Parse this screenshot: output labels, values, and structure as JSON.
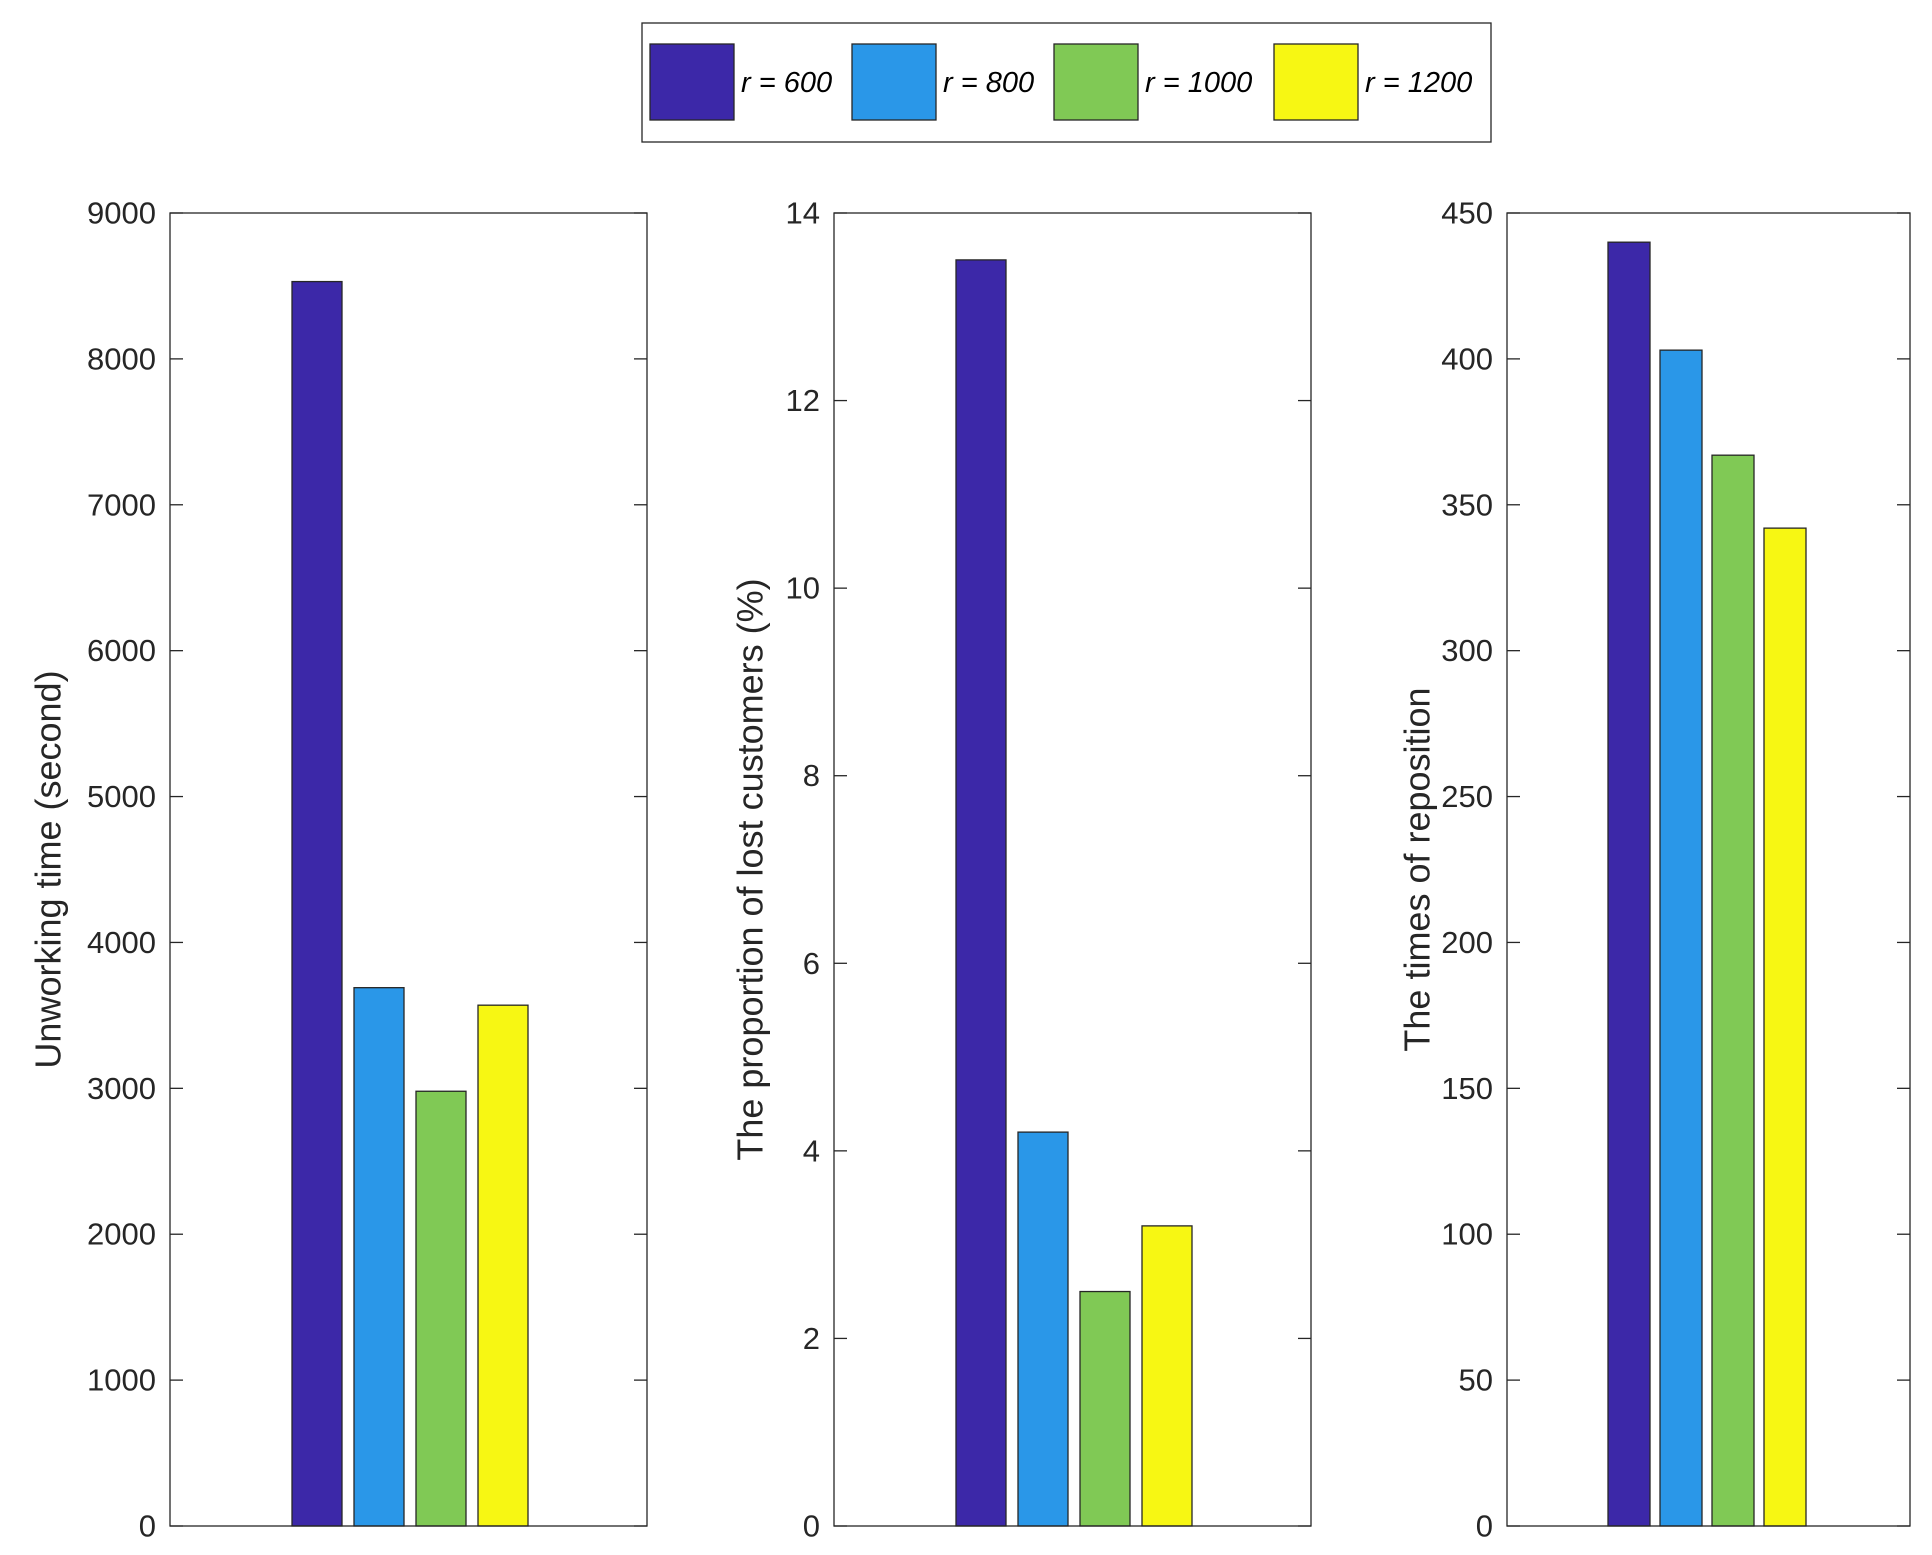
{
  "chart_data": [
    {
      "type": "bar",
      "categories": [
        "r = 600",
        "r = 800",
        "r = 1000",
        "r = 1200"
      ],
      "values": [
        8530,
        3690,
        2980,
        3570
      ],
      "title": "",
      "xlabel": "",
      "ylabel": "Unworking time (second)",
      "ylim": [
        0,
        9000
      ],
      "yticks": [
        0,
        1000,
        2000,
        3000,
        4000,
        5000,
        6000,
        7000,
        8000,
        9000
      ],
      "ytick_labels": [
        "0",
        "1000",
        "2000",
        "3000",
        "4000",
        "5000",
        "6000",
        "7000",
        "8000",
        "9000"
      ],
      "grid": false
    },
    {
      "type": "bar",
      "categories": [
        "r = 600",
        "r = 800",
        "r = 1000",
        "r = 1200"
      ],
      "values": [
        13.5,
        4.2,
        2.5,
        3.2
      ],
      "title": "",
      "xlabel": "",
      "ylabel": "The proportion of lost customers (%)",
      "ylim": [
        0,
        14
      ],
      "yticks": [
        0,
        2,
        4,
        6,
        8,
        10,
        12,
        14
      ],
      "ytick_labels": [
        "0",
        "2",
        "4",
        "6",
        "8",
        "10",
        "12",
        "14"
      ],
      "grid": false
    },
    {
      "type": "bar",
      "categories": [
        "r = 600",
        "r = 800",
        "r = 1000",
        "r = 1200"
      ],
      "values": [
        440,
        403,
        367,
        342
      ],
      "title": "",
      "xlabel": "",
      "ylabel": "The times of reposition",
      "ylim": [
        0,
        450
      ],
      "yticks": [
        0,
        50,
        100,
        150,
        200,
        250,
        300,
        350,
        400,
        450
      ],
      "ytick_labels": [
        "0",
        "50",
        "100",
        "150",
        "200",
        "250",
        "300",
        "350",
        "400",
        "450"
      ],
      "grid": false
    }
  ],
  "legend": {
    "position": "top-center",
    "entries": [
      {
        "label": "r = 600",
        "color": "#3C28A8"
      },
      {
        "label": "r = 800",
        "color": "#2A97E8"
      },
      {
        "label": "r = 1000",
        "color": "#80C955"
      },
      {
        "label": "r = 1200",
        "color": "#F7F713"
      }
    ]
  }
}
